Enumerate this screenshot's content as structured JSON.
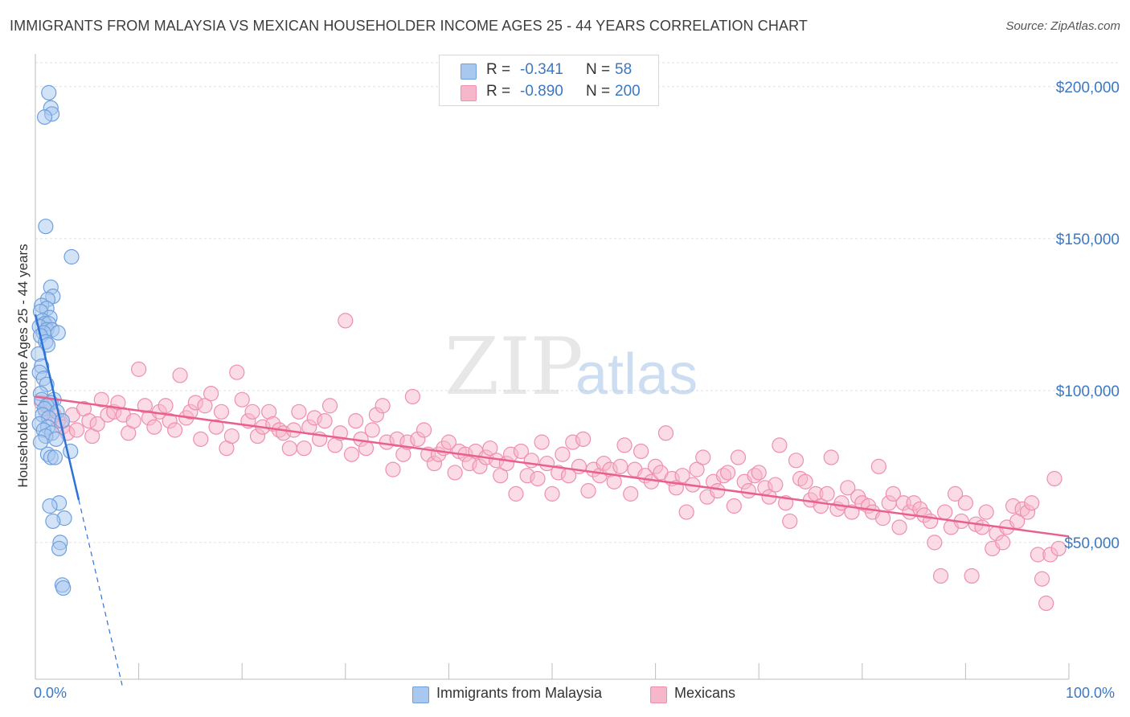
{
  "header": {
    "title": "IMMIGRANTS FROM MALAYSIA VS MEXICAN HOUSEHOLDER INCOME AGES 25 - 44 YEARS CORRELATION CHART",
    "source": "Source: ZipAtlas.com"
  },
  "watermark": {
    "zip": "ZIP",
    "atlas": "atlas"
  },
  "colors": {
    "blue_fill": "#a8c8f0",
    "blue_stroke": "#6fa0dd",
    "blue_line": "#2f72d6",
    "pink_fill": "#f7b7cb",
    "pink_stroke": "#ee8fae",
    "pink_line": "#e8608c",
    "axis_text": "#3b78c4"
  },
  "legend_top": [
    {
      "r_label": "R =",
      "r_value": "-0.341",
      "n_label": "N =",
      "n_value": "58"
    },
    {
      "r_label": "R =",
      "r_value": "-0.890",
      "n_label": "N =",
      "n_value": "200"
    }
  ],
  "legend_bottom": [
    "Immigrants from Malaysia",
    "Mexicans"
  ],
  "chart_data": {
    "type": "scatter",
    "xlabel": "",
    "ylabel": "Householder Income Ages 25 - 44 years",
    "x_tick_labels": [
      "0.0%",
      "100.0%"
    ],
    "y_tick_labels": [
      "$50,000",
      "$100,000",
      "$150,000",
      "$200,000"
    ],
    "y_ticks": [
      50000,
      100000,
      150000,
      200000
    ],
    "xlim": [
      0,
      100
    ],
    "ylim": [
      5000,
      210000
    ],
    "grid": true,
    "series": [
      {
        "name": "Immigrants from Malaysia",
        "r": -0.341,
        "n": 58,
        "trend": {
          "x0": 0,
          "y0": 125000,
          "x1": 4.2,
          "y1": 64000,
          "dash_to_x": 8.4,
          "dash_to_y": 3000
        },
        "points": [
          [
            1.3,
            198000
          ],
          [
            1.5,
            193000
          ],
          [
            1.6,
            191000
          ],
          [
            0.9,
            190000
          ],
          [
            1.0,
            154000
          ],
          [
            3.5,
            144000
          ],
          [
            1.5,
            134000
          ],
          [
            1.7,
            131000
          ],
          [
            1.2,
            130000
          ],
          [
            0.6,
            128000
          ],
          [
            1.1,
            127000
          ],
          [
            0.5,
            126000
          ],
          [
            1.4,
            124000
          ],
          [
            0.7,
            123000
          ],
          [
            0.9,
            122000
          ],
          [
            1.3,
            122000
          ],
          [
            0.4,
            121000
          ],
          [
            1.1,
            120000
          ],
          [
            1.6,
            120000
          ],
          [
            0.8,
            119000
          ],
          [
            2.2,
            119000
          ],
          [
            0.5,
            118000
          ],
          [
            1.0,
            116000
          ],
          [
            1.2,
            115000
          ],
          [
            0.3,
            112000
          ],
          [
            0.6,
            108000
          ],
          [
            0.4,
            106000
          ],
          [
            0.8,
            104000
          ],
          [
            1.1,
            102000
          ],
          [
            0.5,
            99000
          ],
          [
            0.6,
            97000
          ],
          [
            1.8,
            97000
          ],
          [
            1.5,
            96000
          ],
          [
            1.1,
            95000
          ],
          [
            0.9,
            94000
          ],
          [
            2.1,
            93000
          ],
          [
            0.7,
            92000
          ],
          [
            1.3,
            91000
          ],
          [
            2.6,
            90000
          ],
          [
            0.4,
            89000
          ],
          [
            1.2,
            88000
          ],
          [
            0.8,
            87000
          ],
          [
            1.6,
            86000
          ],
          [
            1.0,
            85000
          ],
          [
            2.0,
            84000
          ],
          [
            0.5,
            83000
          ],
          [
            3.4,
            80000
          ],
          [
            1.2,
            79000
          ],
          [
            1.5,
            78000
          ],
          [
            1.9,
            78000
          ],
          [
            2.3,
            63000
          ],
          [
            1.4,
            62000
          ],
          [
            2.8,
            58000
          ],
          [
            1.7,
            57000
          ],
          [
            2.4,
            50000
          ],
          [
            2.3,
            48000
          ],
          [
            2.6,
            36000
          ],
          [
            2.7,
            35000
          ]
        ]
      },
      {
        "name": "Mexicans",
        "r": -0.89,
        "n": 200,
        "trend": {
          "x0": 0,
          "y0": 98000,
          "x1": 100,
          "y1": 52000
        },
        "points": [
          [
            0.6,
            96000
          ],
          [
            1.0,
            93000
          ],
          [
            1.3,
            95000
          ],
          [
            1.8,
            92000
          ],
          [
            2.2,
            90000
          ],
          [
            2.6,
            88000
          ],
          [
            3.1,
            86000
          ],
          [
            3.6,
            92000
          ],
          [
            4.0,
            87000
          ],
          [
            4.7,
            94000
          ],
          [
            5.2,
            90000
          ],
          [
            5.5,
            85000
          ],
          [
            6.0,
            89000
          ],
          [
            6.4,
            97000
          ],
          [
            7.0,
            92000
          ],
          [
            7.6,
            93000
          ],
          [
            8.0,
            96000
          ],
          [
            8.5,
            92000
          ],
          [
            9.0,
            86000
          ],
          [
            9.5,
            90000
          ],
          [
            10.0,
            107000
          ],
          [
            10.6,
            95000
          ],
          [
            11.0,
            91000
          ],
          [
            11.5,
            88000
          ],
          [
            12.0,
            93000
          ],
          [
            12.6,
            95000
          ],
          [
            13.0,
            90000
          ],
          [
            13.5,
            87000
          ],
          [
            14.0,
            105000
          ],
          [
            14.6,
            91000
          ],
          [
            15.0,
            93000
          ],
          [
            15.5,
            96000
          ],
          [
            16.0,
            84000
          ],
          [
            16.4,
            95000
          ],
          [
            17.0,
            99000
          ],
          [
            17.5,
            88000
          ],
          [
            18.0,
            93000
          ],
          [
            18.5,
            81000
          ],
          [
            19.0,
            85000
          ],
          [
            19.5,
            106000
          ],
          [
            20.0,
            97000
          ],
          [
            20.6,
            90000
          ],
          [
            21.0,
            93000
          ],
          [
            21.5,
            85000
          ],
          [
            22.0,
            88000
          ],
          [
            22.6,
            93000
          ],
          [
            23.0,
            89000
          ],
          [
            23.6,
            87000
          ],
          [
            24.0,
            86000
          ],
          [
            24.6,
            81000
          ],
          [
            25.0,
            87000
          ],
          [
            25.5,
            93000
          ],
          [
            26.0,
            81000
          ],
          [
            26.5,
            88000
          ],
          [
            27.0,
            91000
          ],
          [
            27.5,
            84000
          ],
          [
            28.0,
            90000
          ],
          [
            28.5,
            95000
          ],
          [
            29.0,
            82000
          ],
          [
            29.5,
            86000
          ],
          [
            30.0,
            123000
          ],
          [
            30.6,
            79000
          ],
          [
            31.0,
            90000
          ],
          [
            31.5,
            84000
          ],
          [
            32.0,
            81000
          ],
          [
            32.6,
            87000
          ],
          [
            33.0,
            92000
          ],
          [
            33.6,
            95000
          ],
          [
            34.0,
            83000
          ],
          [
            34.6,
            74000
          ],
          [
            35.0,
            84000
          ],
          [
            35.6,
            79000
          ],
          [
            36.0,
            83000
          ],
          [
            36.5,
            98000
          ],
          [
            37.0,
            84000
          ],
          [
            37.6,
            87000
          ],
          [
            38.0,
            79000
          ],
          [
            38.6,
            76000
          ],
          [
            39.0,
            79000
          ],
          [
            39.5,
            81000
          ],
          [
            40.0,
            83000
          ],
          [
            40.6,
            73000
          ],
          [
            41.0,
            80000
          ],
          [
            41.6,
            79000
          ],
          [
            42.0,
            76000
          ],
          [
            42.6,
            80000
          ],
          [
            43.0,
            75000
          ],
          [
            43.6,
            78000
          ],
          [
            44.0,
            81000
          ],
          [
            44.6,
            77000
          ],
          [
            45.0,
            72000
          ],
          [
            45.6,
            76000
          ],
          [
            46.0,
            79000
          ],
          [
            46.5,
            66000
          ],
          [
            47.0,
            80000
          ],
          [
            47.6,
            72000
          ],
          [
            48.0,
            77000
          ],
          [
            48.6,
            71000
          ],
          [
            49.0,
            83000
          ],
          [
            49.5,
            76000
          ],
          [
            50.0,
            66000
          ],
          [
            50.6,
            73000
          ],
          [
            51.0,
            79000
          ],
          [
            51.6,
            72000
          ],
          [
            52.0,
            83000
          ],
          [
            52.6,
            75000
          ],
          [
            53.0,
            84000
          ],
          [
            53.5,
            67000
          ],
          [
            54.0,
            74000
          ],
          [
            54.6,
            72000
          ],
          [
            55.0,
            76000
          ],
          [
            55.6,
            74000
          ],
          [
            56.0,
            70000
          ],
          [
            56.6,
            75000
          ],
          [
            57.0,
            82000
          ],
          [
            57.6,
            66000
          ],
          [
            58.0,
            74000
          ],
          [
            58.6,
            80000
          ],
          [
            59.0,
            72000
          ],
          [
            59.6,
            70000
          ],
          [
            60.0,
            75000
          ],
          [
            60.5,
            73000
          ],
          [
            61.0,
            86000
          ],
          [
            61.6,
            71000
          ],
          [
            62.0,
            68000
          ],
          [
            62.6,
            72000
          ],
          [
            63.0,
            60000
          ],
          [
            63.6,
            69000
          ],
          [
            64.0,
            74000
          ],
          [
            64.6,
            78000
          ],
          [
            65.0,
            65000
          ],
          [
            65.6,
            70000
          ],
          [
            66.0,
            67000
          ],
          [
            66.6,
            72000
          ],
          [
            67.0,
            73000
          ],
          [
            67.6,
            62000
          ],
          [
            68.0,
            78000
          ],
          [
            68.6,
            70000
          ],
          [
            69.0,
            67000
          ],
          [
            69.6,
            72000
          ],
          [
            70.0,
            73000
          ],
          [
            70.6,
            68000
          ],
          [
            71.0,
            65000
          ],
          [
            71.6,
            69000
          ],
          [
            72.0,
            82000
          ],
          [
            72.6,
            63000
          ],
          [
            73.0,
            57000
          ],
          [
            73.6,
            77000
          ],
          [
            74.0,
            71000
          ],
          [
            74.5,
            70000
          ],
          [
            75.0,
            64000
          ],
          [
            75.5,
            66000
          ],
          [
            76.0,
            62000
          ],
          [
            76.6,
            66000
          ],
          [
            77.0,
            78000
          ],
          [
            77.6,
            61000
          ],
          [
            78.0,
            63000
          ],
          [
            78.6,
            68000
          ],
          [
            79.0,
            60000
          ],
          [
            79.6,
            65000
          ],
          [
            80.0,
            63000
          ],
          [
            80.6,
            62000
          ],
          [
            81.0,
            60000
          ],
          [
            81.6,
            75000
          ],
          [
            82.0,
            58000
          ],
          [
            82.6,
            63000
          ],
          [
            83.0,
            66000
          ],
          [
            83.6,
            55000
          ],
          [
            84.0,
            63000
          ],
          [
            84.6,
            60000
          ],
          [
            85.0,
            63000
          ],
          [
            85.6,
            61000
          ],
          [
            86.0,
            59000
          ],
          [
            86.6,
            57000
          ],
          [
            87.0,
            50000
          ],
          [
            87.6,
            39000
          ],
          [
            88.0,
            60000
          ],
          [
            88.6,
            55000
          ],
          [
            89.0,
            66000
          ],
          [
            89.6,
            57000
          ],
          [
            90.0,
            63000
          ],
          [
            90.6,
            39000
          ],
          [
            91.0,
            56000
          ],
          [
            91.6,
            55000
          ],
          [
            92.0,
            60000
          ],
          [
            92.6,
            48000
          ],
          [
            93.0,
            53000
          ],
          [
            93.6,
            50000
          ],
          [
            94.0,
            55000
          ],
          [
            94.6,
            62000
          ],
          [
            95.0,
            57000
          ],
          [
            95.5,
            61000
          ],
          [
            96.0,
            60000
          ],
          [
            96.4,
            63000
          ],
          [
            97.0,
            46000
          ],
          [
            97.4,
            38000
          ],
          [
            97.8,
            30000
          ],
          [
            98.2,
            46000
          ],
          [
            98.6,
            71000
          ],
          [
            99.0,
            48000
          ]
        ]
      }
    ]
  }
}
